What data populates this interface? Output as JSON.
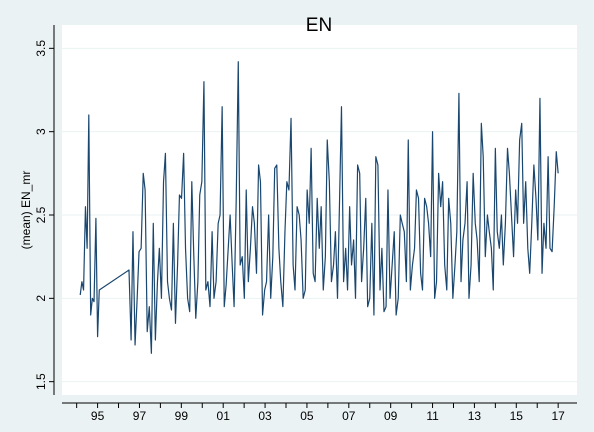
{
  "chart_data": {
    "type": "line",
    "title": "EN",
    "ylabel": "(mean) EN_mr",
    "xlim": [
      1993.3,
      2017.9
    ],
    "xticks": [
      {
        "value": 1995,
        "label": "95"
      },
      {
        "value": 1997,
        "label": "97"
      },
      {
        "value": 1999,
        "label": "99"
      },
      {
        "value": 2001,
        "label": "01"
      },
      {
        "value": 2003,
        "label": "03"
      },
      {
        "value": 2005,
        "label": "05"
      },
      {
        "value": 2007,
        "label": "07"
      },
      {
        "value": 2009,
        "label": "09"
      },
      {
        "value": 2011,
        "label": "11"
      },
      {
        "value": 2013,
        "label": "13"
      },
      {
        "value": 2015,
        "label": "15"
      },
      {
        "value": 2017,
        "label": "17"
      }
    ],
    "xminorticks": [
      1994,
      1996,
      1998,
      2000,
      2002,
      2004,
      2006,
      2008,
      2010,
      2012,
      2014,
      2016
    ],
    "ylim": [
      1.42,
      3.64
    ],
    "yticks": [
      1.5,
      2,
      2.5,
      3,
      3.5
    ],
    "grid": true,
    "series": [
      {
        "name": "(mean) EN_mr",
        "color": "#1a476f",
        "x": [
          1994.17,
          1994.25,
          1994.33,
          1994.42,
          1994.5,
          1994.58,
          1994.67,
          1994.75,
          1994.83,
          1994.92,
          1995.0,
          1995.08,
          1996.5,
          1996.6,
          1996.69,
          1996.79,
          1996.89,
          1996.98,
          1997.08,
          1997.18,
          1997.27,
          1997.37,
          1997.47,
          1997.57,
          1997.66,
          1997.76,
          1997.86,
          1997.95,
          1998.05,
          1998.15,
          1998.24,
          1998.34,
          1998.43,
          1998.53,
          1998.62,
          1998.72,
          1998.82,
          1998.91,
          1999.01,
          1999.11,
          1999.2,
          1999.3,
          1999.4,
          1999.5,
          1999.59,
          1999.69,
          1999.79,
          1999.88,
          1999.98,
          2000.08,
          2000.17,
          2000.27,
          2000.37,
          2000.47,
          2000.56,
          2000.66,
          2000.76,
          2000.85,
          2000.95,
          2001.05,
          2001.14,
          2001.24,
          2001.33,
          2001.43,
          2001.52,
          2001.62,
          2001.72,
          2001.81,
          2001.91,
          2002.01,
          2002.1,
          2002.2,
          2002.3,
          2002.4,
          2002.49,
          2002.59,
          2002.69,
          2002.78,
          2002.88,
          2002.98,
          2003.07,
          2003.17,
          2003.27,
          2003.37,
          2003.46,
          2003.56,
          2003.66,
          2003.75,
          2003.85,
          2003.95,
          2004.04,
          2004.14,
          2004.24,
          2004.34,
          2004.43,
          2004.53,
          2004.63,
          2004.72,
          2004.82,
          2004.92,
          2005.01,
          2005.11,
          2005.2,
          2005.3,
          2005.39,
          2005.49,
          2005.59,
          2005.68,
          2005.78,
          2005.88,
          2005.97,
          2006.07,
          2006.17,
          2006.27,
          2006.36,
          2006.46,
          2006.56,
          2006.65,
          2006.75,
          2006.85,
          2006.94,
          2007.04,
          2007.13,
          2007.23,
          2007.32,
          2007.42,
          2007.52,
          2007.61,
          2007.71,
          2007.81,
          2007.9,
          2008.0,
          2008.1,
          2008.2,
          2008.29,
          2008.39,
          2008.49,
          2008.58,
          2008.68,
          2008.78,
          2008.87,
          2008.97,
          2009.07,
          2009.17,
          2009.26,
          2009.36,
          2009.46,
          2009.55,
          2009.65,
          2009.75,
          2009.84,
          2009.94,
          2010.04,
          2010.14,
          2010.23,
          2010.33,
          2010.43,
          2010.52,
          2010.62,
          2010.72,
          2010.81,
          2010.91,
          2011.0,
          2011.1,
          2011.19,
          2011.29,
          2011.39,
          2011.48,
          2011.58,
          2011.68,
          2011.77,
          2011.87,
          2011.97,
          2012.07,
          2012.16,
          2012.26,
          2012.36,
          2012.45,
          2012.55,
          2012.65,
          2012.74,
          2012.84,
          2012.94,
          2013.04,
          2013.13,
          2013.23,
          2013.33,
          2013.42,
          2013.52,
          2013.62,
          2013.71,
          2013.81,
          2013.9,
          2014.0,
          2014.09,
          2014.19,
          2014.29,
          2014.38,
          2014.48,
          2014.58,
          2014.67,
          2014.77,
          2014.87,
          2014.97,
          2015.06,
          2015.16,
          2015.26,
          2015.35,
          2015.45,
          2015.55,
          2015.64,
          2015.74,
          2015.84,
          2015.94,
          2016.03,
          2016.13,
          2016.23,
          2016.32,
          2016.42,
          2016.52,
          2016.61,
          2016.71,
          2016.81,
          2016.91,
          2017.0
        ],
        "values": [
          2.02,
          2.1,
          2.05,
          2.55,
          2.3,
          3.1,
          1.9,
          2.0,
          1.98,
          2.48,
          1.77,
          2.05,
          2.17,
          1.75,
          2.4,
          1.72,
          2.0,
          2.28,
          2.3,
          2.75,
          2.65,
          1.8,
          1.95,
          1.67,
          2.45,
          1.75,
          2.1,
          2.3,
          2.0,
          2.7,
          2.87,
          2.1,
          2.0,
          1.93,
          2.45,
          1.85,
          2.2,
          2.62,
          2.6,
          2.87,
          2.3,
          2.0,
          1.92,
          2.7,
          2.28,
          1.88,
          2.1,
          2.62,
          2.7,
          3.3,
          2.05,
          2.1,
          1.95,
          2.4,
          2.0,
          2.1,
          2.45,
          2.5,
          3.15,
          1.95,
          2.08,
          2.3,
          2.5,
          2.2,
          1.95,
          2.58,
          3.42,
          2.2,
          2.25,
          2.0,
          2.65,
          2.1,
          2.3,
          2.55,
          2.45,
          2.15,
          2.8,
          2.7,
          1.9,
          2.05,
          2.1,
          2.5,
          2.0,
          2.25,
          2.78,
          2.8,
          2.3,
          2.1,
          1.95,
          2.4,
          2.7,
          2.65,
          3.08,
          2.2,
          2.05,
          2.55,
          2.5,
          2.35,
          2.0,
          2.05,
          2.65,
          2.45,
          2.9,
          2.15,
          2.1,
          2.6,
          2.3,
          2.55,
          2.05,
          2.25,
          2.95,
          2.7,
          2.1,
          2.2,
          2.4,
          2.0,
          2.6,
          3.15,
          2.1,
          2.3,
          2.05,
          2.55,
          2.2,
          2.35,
          2.0,
          2.8,
          2.75,
          2.1,
          2.3,
          2.6,
          1.95,
          2.0,
          2.45,
          1.9,
          2.85,
          2.8,
          2.05,
          2.3,
          1.92,
          1.95,
          2.65,
          2.0,
          2.2,
          2.4,
          1.9,
          2.0,
          2.5,
          2.45,
          2.4,
          2.1,
          2.95,
          2.05,
          2.2,
          2.3,
          2.65,
          2.6,
          2.15,
          2.05,
          2.6,
          2.55,
          2.45,
          2.25,
          3.0,
          2.0,
          2.1,
          2.75,
          2.55,
          2.7,
          2.2,
          2.05,
          2.6,
          2.45,
          2.0,
          2.2,
          2.4,
          3.23,
          2.1,
          2.35,
          2.45,
          2.7,
          2.0,
          2.2,
          2.75,
          2.45,
          2.35,
          2.1,
          3.05,
          2.85,
          2.25,
          2.5,
          2.4,
          2.3,
          2.05,
          2.9,
          2.4,
          2.3,
          2.5,
          2.2,
          2.45,
          2.9,
          2.75,
          2.5,
          2.25,
          2.65,
          2.45,
          2.95,
          3.05,
          2.45,
          2.7,
          2.3,
          2.15,
          2.45,
          2.8,
          2.6,
          2.35,
          3.2,
          2.15,
          2.45,
          2.3,
          2.85,
          2.3,
          2.28,
          2.55,
          2.88,
          2.75
        ]
      }
    ]
  }
}
